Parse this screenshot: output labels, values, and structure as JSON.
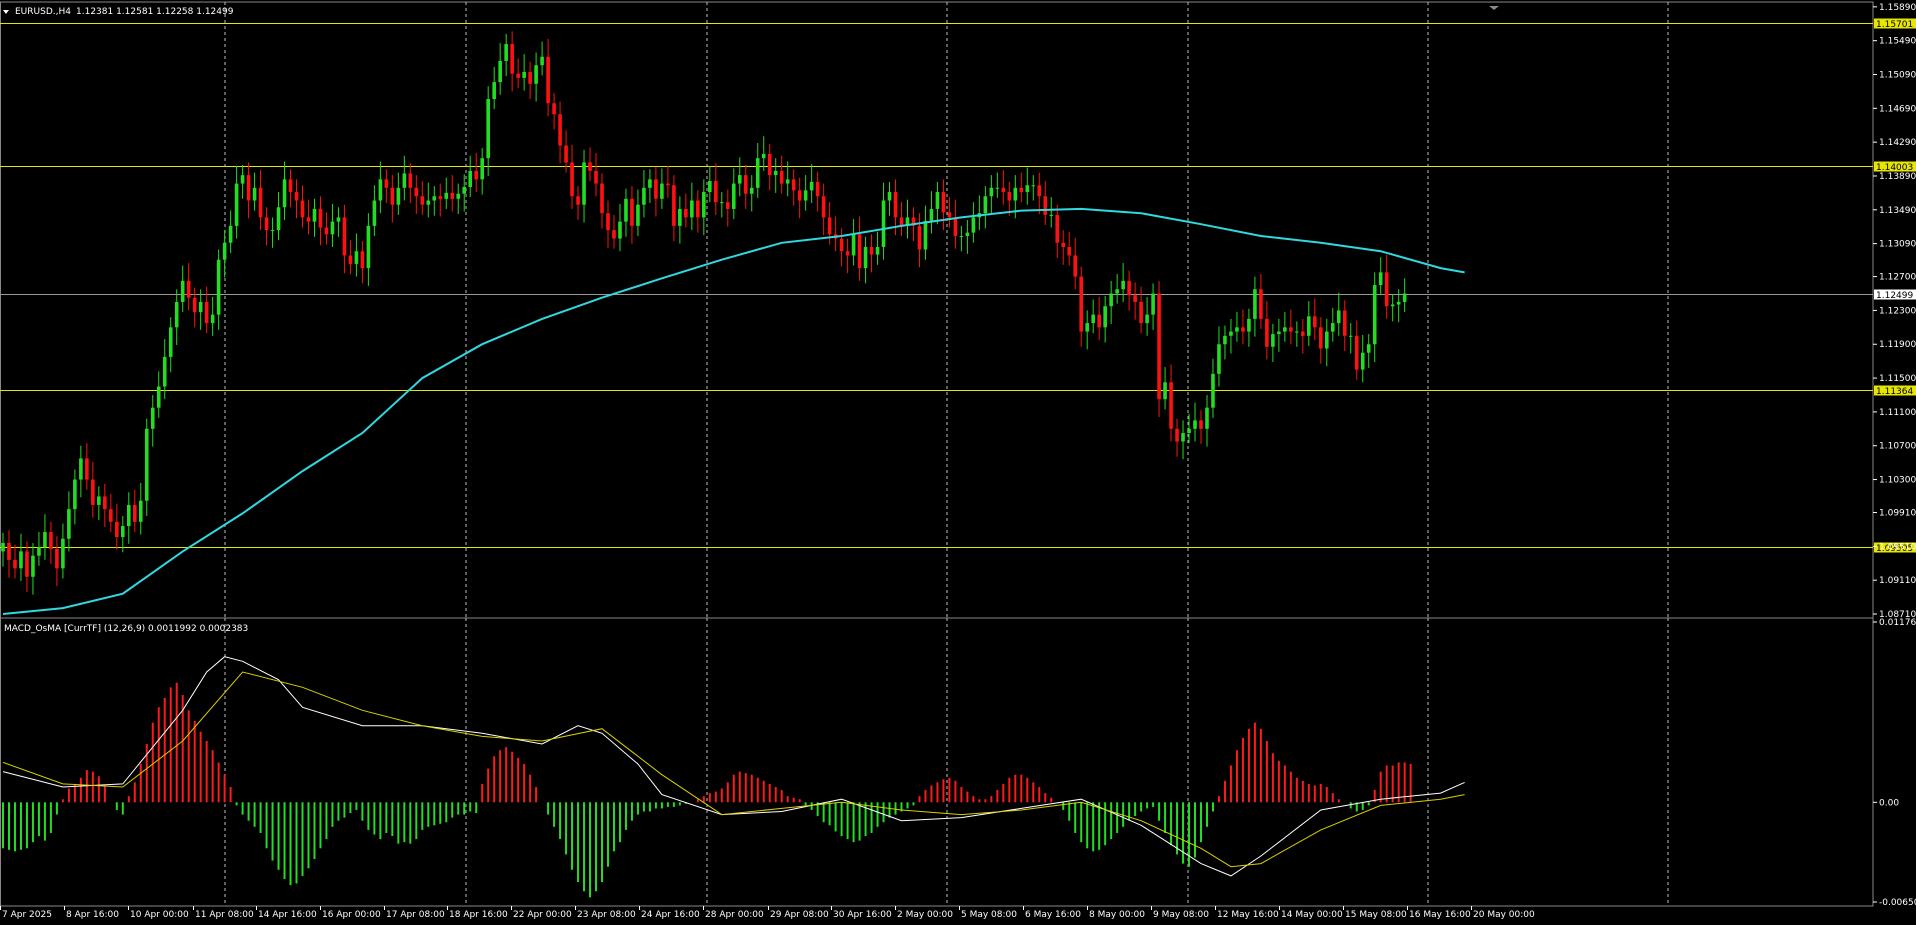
{
  "header": {
    "symbol": "EURUSD.,H4",
    "ohlc": "1.12381 1.12581 1.12258 1.12499"
  },
  "indicator": {
    "label": "MACD_OsMA [CurrTF] (12,26,9) 0.0011992 0.0002383"
  },
  "colors": {
    "background": "#000000",
    "bull": "#22dd22",
    "bear": "#ff1111",
    "ma": "#30d8e0",
    "level": "#e6e600",
    "grid": "#bbbbbb",
    "hist_pos": "#ff1a1a",
    "hist_neg": "#22dd22",
    "macd_line": "#ffffff",
    "signal_line": "#d8d000"
  },
  "chart_data": [
    {
      "type": "candlestick",
      "title": "EURUSD.,H4",
      "ylim": [
        1.0871,
        1.159
      ],
      "y_ticks": [
        "1.15890",
        "1.15490",
        "1.15090",
        "1.14690",
        "1.14290",
        "1.13890",
        "1.13490",
        "1.13090",
        "1.12700",
        "1.12300",
        "1.11900",
        "1.11500",
        "1.11100",
        "1.10700",
        "1.10300",
        "1.09910",
        "1.09510",
        "1.09110",
        "1.08710"
      ],
      "x_labels": [
        "7 Apr 2025",
        "8 Apr 16:00",
        "10 Apr 00:00",
        "11 Apr 08:00",
        "14 Apr 16:00",
        "16 Apr 00:00",
        "17 Apr 08:00",
        "18 Apr 16:00",
        "22 Apr 00:00",
        "23 Apr 08:00",
        "24 Apr 16:00",
        "28 Apr 00:00",
        "29 Apr 08:00",
        "30 Apr 16:00",
        "2 May 00:00",
        "5 May 08:00",
        "6 May 16:00",
        "8 May 00:00",
        "9 May 08:00",
        "12 May 16:00",
        "14 May 00:00",
        "15 May 08:00",
        "16 May 16:00",
        "20 May 00:00"
      ],
      "horizontal_levels": [
        {
          "label": "1.15701",
          "value": 1.15701
        },
        {
          "label": "1.14003",
          "value": 1.14003
        },
        {
          "label": "1.11364",
          "value": 1.11364
        },
        {
          "label": "1.09505",
          "value": 1.09505
        }
      ],
      "current_price": {
        "label": "1.12499",
        "value": 1.12499
      },
      "candles_close": [
        1.0955,
        1.0935,
        1.0925,
        1.0945,
        1.0915,
        1.094,
        1.095,
        1.0968,
        1.0948,
        1.0925,
        1.096,
        1.0995,
        1.103,
        1.1055,
        1.103,
        1.1,
        1.101,
        1.0995,
        1.098,
        1.0962,
        1.0975,
        1.1,
        1.098,
        1.1005,
        1.109,
        1.1115,
        1.114,
        1.1175,
        1.121,
        1.124,
        1.1265,
        1.1245,
        1.1228,
        1.124,
        1.1215,
        1.1225,
        1.129,
        1.131,
        1.133,
        1.138,
        1.139,
        1.136,
        1.1375,
        1.134,
        1.1325,
        1.1325,
        1.1352,
        1.1385,
        1.137,
        1.136,
        1.134,
        1.1335,
        1.135,
        1.1328,
        1.132,
        1.1335,
        1.134,
        1.1295,
        1.1285,
        1.13,
        1.128,
        1.133,
        1.136,
        1.1385,
        1.1375,
        1.1355,
        1.1375,
        1.1392,
        1.1375,
        1.1365,
        1.1355,
        1.136,
        1.1365,
        1.1362,
        1.1369,
        1.1362,
        1.1368,
        1.1376,
        1.1395,
        1.1385,
        1.141,
        1.148,
        1.15,
        1.1525,
        1.1545,
        1.151,
        1.1505,
        1.1512,
        1.1498,
        1.152,
        1.153,
        1.1475,
        1.1462,
        1.1425,
        1.1405,
        1.1365,
        1.1355,
        1.1405,
        1.1395,
        1.138,
        1.1345,
        1.1325,
        1.1315,
        1.1335,
        1.1362,
        1.133,
        1.1355,
        1.1375,
        1.1385,
        1.1362,
        1.138,
        1.1378,
        1.133,
        1.135,
        1.134,
        1.136,
        1.134,
        1.137,
        1.1383,
        1.1358,
        1.1358,
        1.135,
        1.138,
        1.139,
        1.1368,
        1.1375,
        1.141,
        1.1415,
        1.139,
        1.1395,
        1.138,
        1.1385,
        1.1372,
        1.136,
        1.1372,
        1.1382,
        1.1365,
        1.134,
        1.132,
        1.1315,
        1.13,
        1.1295,
        1.132,
        1.128,
        1.1305,
        1.1296,
        1.1305,
        1.136,
        1.137,
        1.134,
        1.133,
        1.134,
        1.133,
        1.1302,
        1.1336,
        1.135,
        1.137,
        1.1346,
        1.134,
        1.1318,
        1.1318,
        1.1322,
        1.134,
        1.1345,
        1.1365,
        1.1375,
        1.1375,
        1.137,
        1.136,
        1.1375,
        1.137,
        1.1378,
        1.1378,
        1.1365,
        1.1343,
        1.1343,
        1.131,
        1.1305,
        1.1295,
        1.127,
        1.1205,
        1.1215,
        1.1225,
        1.121,
        1.1235,
        1.125,
        1.1255,
        1.1265,
        1.1248,
        1.124,
        1.1215,
        1.1225,
        1.125,
        1.1125,
        1.1145,
        1.109,
        1.1075,
        1.1085,
        1.109,
        1.11,
        1.109,
        1.1115,
        1.1155,
        1.119,
        1.12,
        1.1205,
        1.121,
        1.1205,
        1.122,
        1.1255,
        1.122,
        1.1187,
        1.1202,
        1.1205,
        1.121,
        1.1205,
        1.1205,
        1.12,
        1.1223,
        1.121,
        1.1185,
        1.1205,
        1.1215,
        1.123,
        1.12,
        1.12,
        1.116,
        1.118,
        1.119,
        1.126,
        1.1275,
        1.1235,
        1.1237,
        1.124,
        1.125
      ],
      "ma_line": {
        "name": "",
        "x_candle_index": [
          0,
          10,
          20,
          30,
          40,
          50,
          60,
          70,
          80,
          90,
          100,
          110,
          120,
          130,
          140,
          150,
          160,
          170,
          180,
          190,
          200,
          210,
          220,
          230,
          240,
          244
        ],
        "values": [
          1.0871,
          1.0878,
          1.0895,
          1.0945,
          1.099,
          1.104,
          1.1085,
          1.115,
          1.119,
          1.122,
          1.1245,
          1.1268,
          1.129,
          1.131,
          1.1318,
          1.133,
          1.134,
          1.1348,
          1.135,
          1.1345,
          1.1332,
          1.1318,
          1.131,
          1.13,
          1.128,
          1.1275
        ]
      }
    },
    {
      "type": "bar",
      "title": "MACD_OsMA [CurrTF] (12,26,9)",
      "ylim": [
        -0.006503,
        0.011761
      ],
      "y_ticks": [
        "0.0117613",
        "0.00",
        "-0.006503"
      ],
      "histogram": [
        -0.003,
        -0.0031,
        -0.0032,
        -0.0031,
        -0.003,
        -0.0026,
        -0.0022,
        -0.0025,
        -0.002,
        -0.0008,
        0.0002,
        0.0009,
        0.0012,
        0.0016,
        0.0021,
        0.002,
        0.0017,
        0.0011,
        0.0,
        -0.0005,
        -0.0008,
        0.0004,
        0.0013,
        0.0025,
        0.0038,
        0.0052,
        0.0062,
        0.0068,
        0.0075,
        0.0078,
        0.007,
        0.006,
        0.0053,
        0.0046,
        0.004,
        0.0034,
        0.0026,
        0.0018,
        0.001,
        -0.0002,
        -0.0008,
        -0.0012,
        -0.0016,
        -0.002,
        -0.003,
        -0.0038,
        -0.0044,
        -0.005,
        -0.0054,
        -0.0053,
        -0.0048,
        -0.0043,
        -0.0037,
        -0.003,
        -0.0024,
        -0.0016,
        -0.0012,
        -0.001,
        -0.0007,
        -0.0005,
        -0.0012,
        -0.0018,
        -0.0021,
        -0.0024,
        -0.002,
        -0.0022,
        -0.0027,
        -0.0026,
        -0.0027,
        -0.0024,
        -0.0018,
        -0.0016,
        -0.0015,
        -0.0014,
        -0.0013,
        -0.001,
        -0.0008,
        -0.0008,
        -0.0006,
        -0.0007,
        0.0012,
        0.0022,
        0.003,
        0.0034,
        0.0036,
        0.0033,
        0.0029,
        0.0025,
        0.0018,
        0.001,
        0.0,
        -0.0008,
        -0.0016,
        -0.0024,
        -0.0034,
        -0.0044,
        -0.0052,
        -0.0058,
        -0.0062,
        -0.0058,
        -0.0052,
        -0.0042,
        -0.0032,
        -0.0026,
        -0.0018,
        -0.0012,
        -0.0008,
        -0.0006,
        -0.0006,
        -0.0004,
        -0.0004,
        -0.0003,
        -0.0003,
        -0.0002,
        -0.0001,
        0.0,
        0.0002,
        0.0004,
        0.0006,
        0.0007,
        0.0009,
        0.0013,
        0.0018,
        0.002,
        0.0019,
        0.0018,
        0.0016,
        0.0014,
        0.0012,
        0.001,
        0.0008,
        0.0004,
        0.0003,
        0.0002,
        -0.0002,
        -0.0005,
        -0.0009,
        -0.0013,
        -0.0015,
        -0.0019,
        -0.0022,
        -0.0024,
        -0.0026,
        -0.0025,
        -0.0022,
        -0.002,
        -0.0016,
        -0.0013,
        -0.001,
        -0.0008,
        -0.0006,
        -0.0004,
        -0.0002,
        0.0004,
        0.0008,
        0.0011,
        0.0013,
        0.0015,
        0.0016,
        0.0014,
        0.001,
        0.0007,
        0.0004,
        0.0002,
        0.0002,
        0.0004,
        0.0008,
        0.0012,
        0.0016,
        0.0018,
        0.0018,
        0.0016,
        0.0013,
        0.001,
        0.0006,
        0.0003,
        0.0,
        -0.0005,
        -0.0012,
        -0.002,
        -0.0026,
        -0.003,
        -0.0032,
        -0.0031,
        -0.0028,
        -0.0024,
        -0.002,
        -0.0016,
        -0.0012,
        -0.0009,
        -0.0006,
        -0.0004,
        -0.0003,
        -0.0012,
        -0.002,
        -0.0028,
        -0.0034,
        -0.004,
        -0.0042,
        -0.0036,
        -0.0026,
        -0.0016,
        -0.0006,
        0.0004,
        0.0014,
        0.0024,
        0.0034,
        0.0042,
        0.0048,
        0.0052,
        0.0048,
        0.004,
        0.0032,
        0.0027,
        0.0024,
        0.002,
        0.0016,
        0.0014,
        0.0012,
        0.0011,
        0.0012,
        0.001,
        0.0006,
        0.0002,
        0.0,
        -0.0004,
        -0.0006,
        -0.0005,
        -0.0002,
        0.0008,
        0.002,
        0.0024,
        0.0024,
        0.0026,
        0.0026,
        0.0025
      ],
      "macd_line": {
        "name": "",
        "x_candle_index": [
          0,
          10,
          20,
          30,
          34,
          37,
          40,
          46,
          50,
          60,
          70,
          80,
          90,
          96,
          100,
          106,
          110,
          120,
          130,
          140,
          150,
          160,
          170,
          180,
          190,
          200,
          205,
          210,
          220,
          230,
          240,
          244
        ],
        "values": [
          0.002,
          0.001,
          0.0012,
          0.006,
          0.0085,
          0.0095,
          0.0092,
          0.008,
          0.0062,
          0.005,
          0.005,
          0.0045,
          0.0038,
          0.005,
          0.0045,
          0.0025,
          0.0005,
          -0.0008,
          -0.0006,
          0.0002,
          -0.0012,
          -0.001,
          -0.0004,
          0.0002,
          -0.0015,
          -0.004,
          -0.0048,
          -0.0035,
          -0.0005,
          0.0002,
          0.0006,
          0.0013
        ]
      },
      "signal_line": {
        "name": "",
        "x_candle_index": [
          0,
          10,
          20,
          30,
          40,
          50,
          60,
          70,
          80,
          90,
          100,
          110,
          120,
          130,
          140,
          150,
          160,
          170,
          180,
          190,
          200,
          205,
          210,
          220,
          230,
          240,
          244
        ],
        "values": [
          0.0026,
          0.0012,
          0.001,
          0.004,
          0.0085,
          0.0075,
          0.006,
          0.005,
          0.0043,
          0.004,
          0.0048,
          0.0018,
          -0.0008,
          -0.0004,
          0.0,
          -0.0005,
          -0.0008,
          -0.0005,
          0.0,
          -0.0012,
          -0.003,
          -0.0042,
          -0.004,
          -0.0018,
          -0.0002,
          0.0002,
          0.0005
        ]
      }
    }
  ]
}
